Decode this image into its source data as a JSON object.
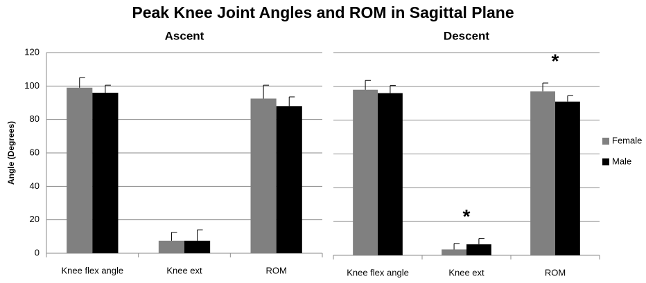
{
  "title": "Peak Knee Joint Angles and ROM in Sagittal Plane",
  "chart_data": [
    {
      "type": "bar",
      "title": "Ascent",
      "y_label": "Angle (Degrees)",
      "categories": [
        "Knee flex angle",
        "Knee ext",
        "ROM"
      ],
      "series": [
        {
          "name": "Female",
          "color": "#808080",
          "values": [
            99,
            7.5,
            92.5
          ],
          "errors": [
            6,
            5,
            8
          ]
        },
        {
          "name": "Male",
          "color": "#000000",
          "values": [
            96,
            7.5,
            88
          ],
          "errors": [
            4.5,
            6.5,
            5.5
          ]
        }
      ],
      "ylim": [
        0,
        120
      ],
      "yticks": [
        0,
        20,
        40,
        60,
        80,
        100,
        120
      ],
      "ytick_labels": true,
      "grid": true,
      "legend": false
    },
    {
      "type": "bar",
      "title": "Descent",
      "categories": [
        "Knee flex angle",
        "Knee ext",
        "ROM"
      ],
      "series": [
        {
          "name": "Female",
          "color": "#808080",
          "values": [
            98,
            3.5,
            97
          ],
          "errors": [
            5.5,
            3.5,
            5
          ]
        },
        {
          "name": "Male",
          "color": "#000000",
          "values": [
            96,
            6.5,
            91
          ],
          "errors": [
            4.5,
            3.5,
            3.5
          ]
        }
      ],
      "annotations": [
        {
          "label": "*",
          "category": "Knee ext"
        },
        {
          "label": "*",
          "category": "ROM"
        }
      ],
      "ylim": [
        0,
        120
      ],
      "yticks": [
        0,
        20,
        40,
        60,
        80,
        100,
        120
      ],
      "ytick_labels": false,
      "grid": true,
      "legend": "right"
    }
  ]
}
